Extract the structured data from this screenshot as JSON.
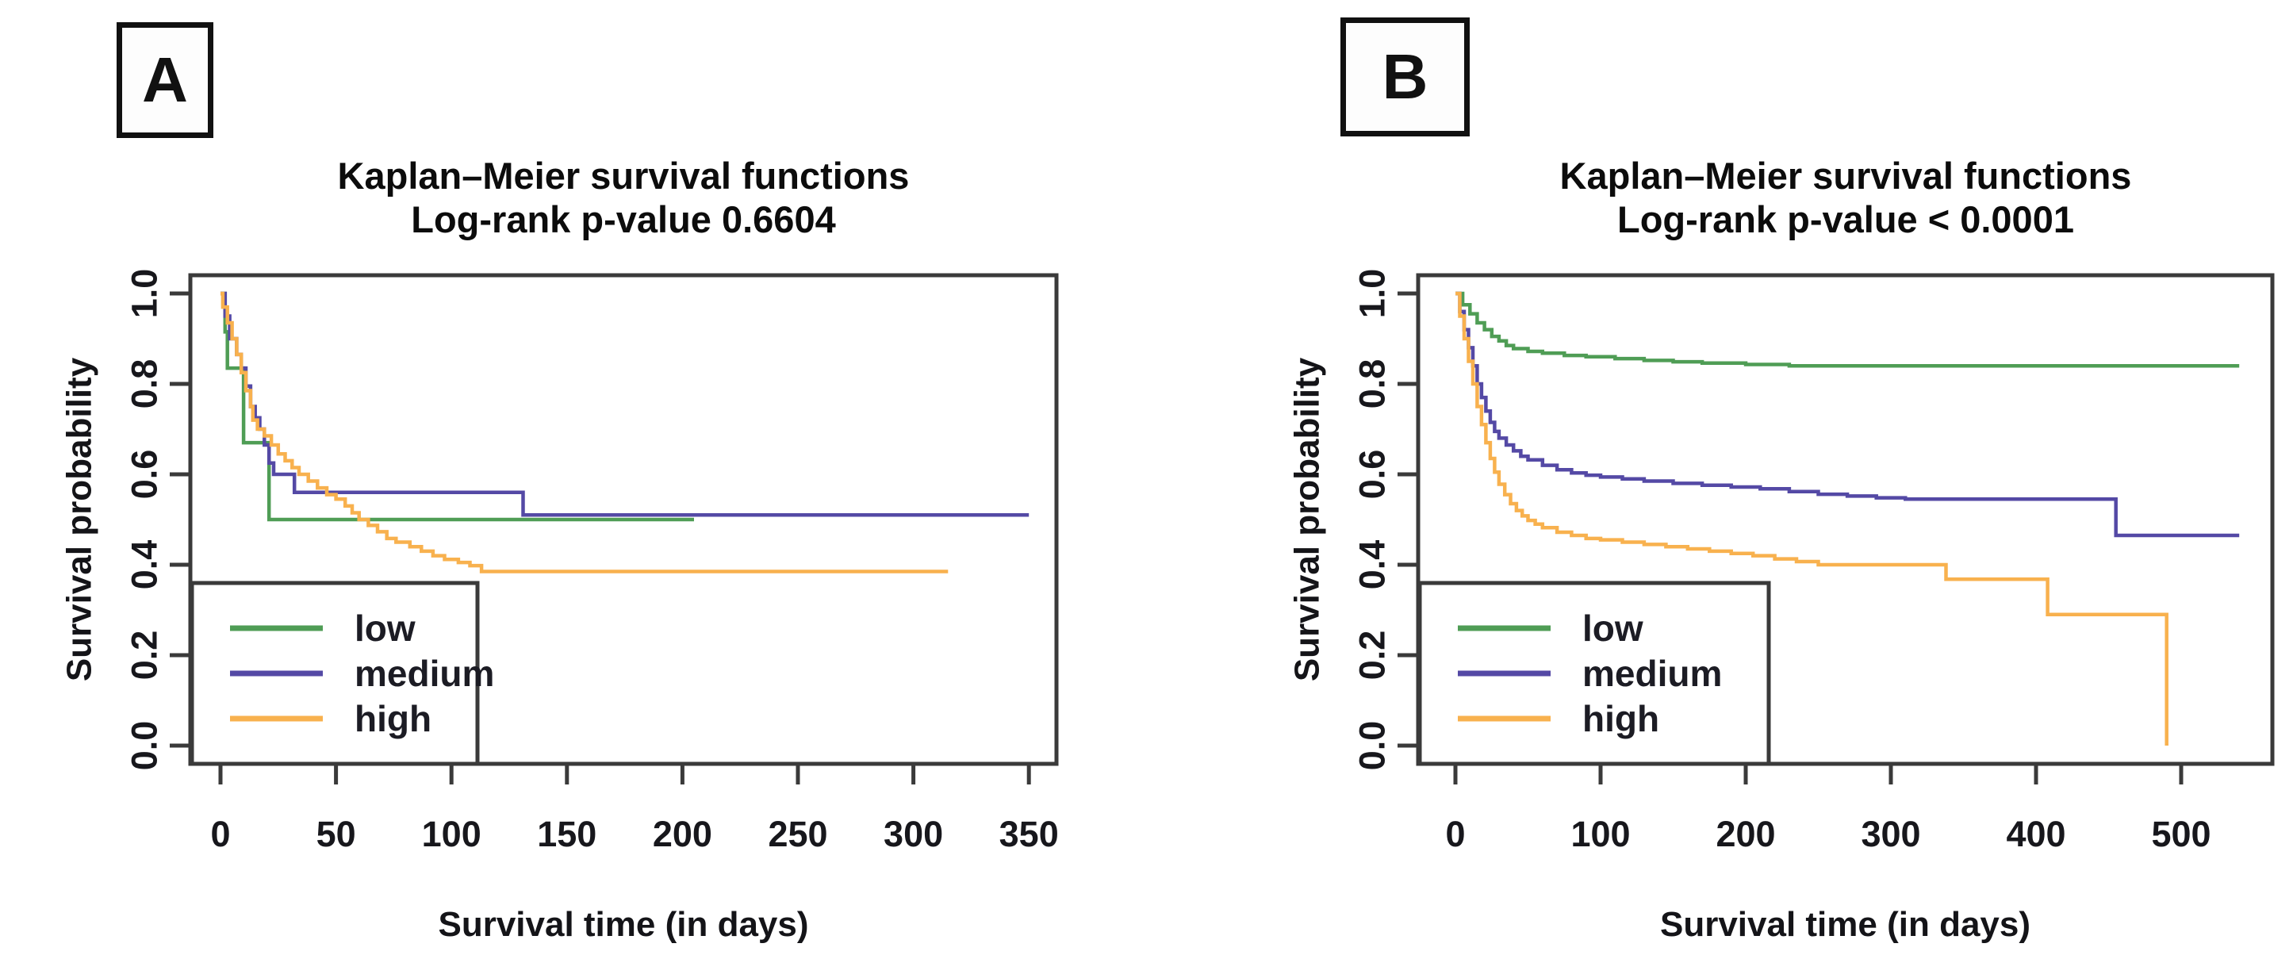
{
  "figure": {
    "background": "#ffffff",
    "axis_color": "#3a3a3a",
    "text_color": "#17171c",
    "panels": [
      {
        "label": "A"
      },
      {
        "label": "B"
      }
    ]
  },
  "chart_data": [
    {
      "type": "line",
      "km_step": true,
      "panel": "A",
      "title": "Kaplan–Meier survival functions",
      "subtitle": "Log-rank p-value 0.6604",
      "xlabel": "Survival time (in days)",
      "ylabel": "Survival probability",
      "xlim": [
        0,
        364
      ],
      "ylim": [
        0,
        1.0
      ],
      "xticks": [
        0,
        50,
        100,
        150,
        200,
        250,
        300,
        350
      ],
      "yticks": [
        "0.0",
        "0.2",
        "0.4",
        "0.6",
        "0.8",
        "1.0"
      ],
      "grid": false,
      "legend_position": "bottom-left",
      "series": [
        {
          "name": "low",
          "color": "#4f9d55",
          "points": [
            [
              0,
              1.0
            ],
            [
              2,
              0.915
            ],
            [
              3,
              0.835
            ],
            [
              10,
              0.67
            ],
            [
              21,
              0.5
            ],
            [
              205,
              0.5
            ]
          ]
        },
        {
          "name": "medium",
          "color": "#5449a5",
          "points": [
            [
              0,
              1.0
            ],
            [
              2,
              0.95
            ],
            [
              4,
              0.9
            ],
            [
              7,
              0.865
            ],
            [
              9,
              0.835
            ],
            [
              11,
              0.795
            ],
            [
              13,
              0.75
            ],
            [
              15,
              0.725
            ],
            [
              17,
              0.7
            ],
            [
              19,
              0.665
            ],
            [
              21,
              0.625
            ],
            [
              23,
              0.6
            ],
            [
              30,
              0.6
            ],
            [
              32,
              0.56
            ],
            [
              128,
              0.56
            ],
            [
              131,
              0.51
            ],
            [
              350,
              0.51
            ]
          ]
        },
        {
          "name": "high",
          "color": "#f8b14e",
          "points": [
            [
              0,
              1.0
            ],
            [
              1,
              0.97
            ],
            [
              3,
              0.935
            ],
            [
              5,
              0.9
            ],
            [
              7,
              0.865
            ],
            [
              9,
              0.825
            ],
            [
              11,
              0.785
            ],
            [
              13,
              0.75
            ],
            [
              14,
              0.72
            ],
            [
              16,
              0.7
            ],
            [
              19,
              0.685
            ],
            [
              22,
              0.665
            ],
            [
              25,
              0.645
            ],
            [
              28,
              0.63
            ],
            [
              31,
              0.615
            ],
            [
              34,
              0.6
            ],
            [
              38,
              0.585
            ],
            [
              42,
              0.57
            ],
            [
              46,
              0.555
            ],
            [
              50,
              0.545
            ],
            [
              54,
              0.53
            ],
            [
              57,
              0.515
            ],
            [
              60,
              0.5
            ],
            [
              64,
              0.487
            ],
            [
              68,
              0.473
            ],
            [
              72,
              0.458
            ],
            [
              76,
              0.45
            ],
            [
              82,
              0.44
            ],
            [
              87,
              0.43
            ],
            [
              92,
              0.42
            ],
            [
              97,
              0.412
            ],
            [
              103,
              0.405
            ],
            [
              108,
              0.398
            ],
            [
              113,
              0.385
            ],
            [
              315,
              0.385
            ]
          ]
        }
      ]
    },
    {
      "type": "line",
      "km_step": true,
      "panel": "B",
      "title": "Kaplan–Meier survival functions",
      "subtitle": "Log-rank p-value < 0.0001",
      "xlabel": "Survival time (in days)",
      "ylabel": "Survival probability",
      "xlim": [
        0,
        562
      ],
      "ylim": [
        0,
        1.0
      ],
      "xticks": [
        0,
        100,
        200,
        300,
        400,
        500
      ],
      "yticks": [
        "0.0",
        "0.2",
        "0.4",
        "0.6",
        "0.8",
        "1.0"
      ],
      "grid": false,
      "legend_position": "bottom-left",
      "series": [
        {
          "name": "low",
          "color": "#4f9d55",
          "points": [
            [
              0,
              1.0
            ],
            [
              5,
              0.975
            ],
            [
              10,
              0.955
            ],
            [
              15,
              0.935
            ],
            [
              20,
              0.92
            ],
            [
              25,
              0.905
            ],
            [
              30,
              0.895
            ],
            [
              35,
              0.885
            ],
            [
              40,
              0.878
            ],
            [
              50,
              0.872
            ],
            [
              60,
              0.868
            ],
            [
              75,
              0.863
            ],
            [
              90,
              0.86
            ],
            [
              110,
              0.856
            ],
            [
              130,
              0.852
            ],
            [
              150,
              0.849
            ],
            [
              170,
              0.846
            ],
            [
              200,
              0.843
            ],
            [
              230,
              0.84
            ],
            [
              540,
              0.84
            ]
          ]
        },
        {
          "name": "medium",
          "color": "#5449a5",
          "points": [
            [
              0,
              1.0
            ],
            [
              3,
              0.96
            ],
            [
              6,
              0.92
            ],
            [
              9,
              0.88
            ],
            [
              12,
              0.84
            ],
            [
              15,
              0.8
            ],
            [
              18,
              0.77
            ],
            [
              21,
              0.74
            ],
            [
              24,
              0.715
            ],
            [
              27,
              0.695
            ],
            [
              30,
              0.68
            ],
            [
              35,
              0.665
            ],
            [
              40,
              0.652
            ],
            [
              45,
              0.64
            ],
            [
              50,
              0.632
            ],
            [
              60,
              0.62
            ],
            [
              70,
              0.61
            ],
            [
              80,
              0.603
            ],
            [
              90,
              0.598
            ],
            [
              100,
              0.594
            ],
            [
              115,
              0.59
            ],
            [
              130,
              0.585
            ],
            [
              150,
              0.58
            ],
            [
              170,
              0.576
            ],
            [
              190,
              0.572
            ],
            [
              210,
              0.568
            ],
            [
              230,
              0.562
            ],
            [
              250,
              0.556
            ],
            [
              270,
              0.552
            ],
            [
              290,
              0.548
            ],
            [
              310,
              0.545
            ],
            [
              450,
              0.545
            ],
            [
              455,
              0.465
            ],
            [
              540,
              0.465
            ]
          ]
        },
        {
          "name": "high",
          "color": "#f8b14e",
          "points": [
            [
              0,
              1.0
            ],
            [
              3,
              0.95
            ],
            [
              6,
              0.9
            ],
            [
              9,
              0.85
            ],
            [
              12,
              0.8
            ],
            [
              15,
              0.75
            ],
            [
              18,
              0.71
            ],
            [
              21,
              0.67
            ],
            [
              24,
              0.635
            ],
            [
              27,
              0.605
            ],
            [
              30,
              0.578
            ],
            [
              34,
              0.555
            ],
            [
              38,
              0.535
            ],
            [
              42,
              0.52
            ],
            [
              46,
              0.508
            ],
            [
              50,
              0.498
            ],
            [
              55,
              0.49
            ],
            [
              60,
              0.482
            ],
            [
              70,
              0.472
            ],
            [
              80,
              0.465
            ],
            [
              90,
              0.458
            ],
            [
              100,
              0.455
            ],
            [
              115,
              0.45
            ],
            [
              130,
              0.445
            ],
            [
              145,
              0.44
            ],
            [
              160,
              0.435
            ],
            [
              175,
              0.43
            ],
            [
              190,
              0.425
            ],
            [
              205,
              0.42
            ],
            [
              220,
              0.413
            ],
            [
              235,
              0.407
            ],
            [
              250,
              0.4
            ],
            [
              335,
              0.4
            ],
            [
              338,
              0.368
            ],
            [
              405,
              0.368
            ],
            [
              408,
              0.29
            ],
            [
              488,
              0.29
            ],
            [
              490,
              0.0
            ]
          ]
        }
      ]
    }
  ]
}
